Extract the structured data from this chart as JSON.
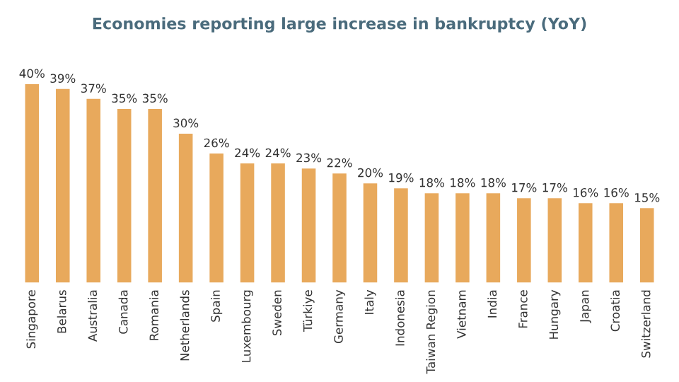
{
  "chart_data": {
    "type": "bar",
    "title": "Economies reporting large increase in bankruptcy (YoY)",
    "categories": [
      "Singapore",
      "Belarus",
      "Australia",
      "Canada",
      "Romania",
      "Netherlands",
      "Spain",
      "Luxembourg",
      "Sweden",
      "Türkiye",
      "Germany",
      "Italy",
      "Indonesia",
      "Taiwan Region",
      "Vietnam",
      "India",
      "France",
      "Hungary",
      "Japan",
      "Croatia",
      "Switzerland"
    ],
    "values": [
      40,
      39,
      37,
      35,
      35,
      30,
      26,
      24,
      24,
      23,
      22,
      20,
      19,
      18,
      18,
      18,
      17,
      17,
      16,
      16,
      15
    ],
    "value_labels": [
      "40%",
      "39%",
      "37%",
      "35%",
      "35%",
      "30%",
      "26%",
      "24%",
      "24%",
      "23%",
      "22%",
      "20%",
      "19%",
      "18%",
      "18%",
      "18%",
      "17%",
      "17%",
      "16%",
      "16%",
      "15%"
    ],
    "color": "#e8a95c"
  }
}
